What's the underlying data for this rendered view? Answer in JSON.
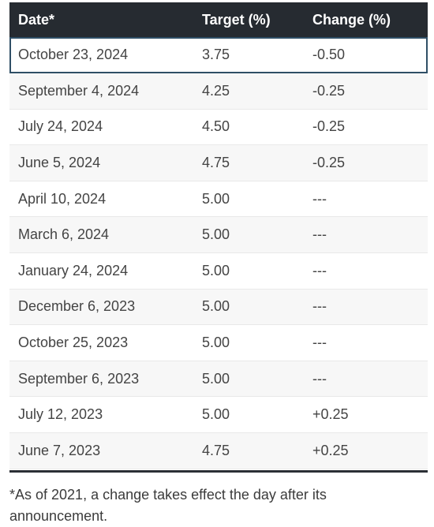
{
  "table": {
    "headers": {
      "date": "Date*",
      "target": "Target (%)",
      "change": "Change (%)"
    },
    "rows": [
      {
        "date": "October 23, 2024",
        "target": "3.75",
        "change": "-0.50"
      },
      {
        "date": "September 4, 2024",
        "target": "4.25",
        "change": "-0.25"
      },
      {
        "date": "July 24, 2024",
        "target": "4.50",
        "change": "-0.25"
      },
      {
        "date": "June 5, 2024",
        "target": "4.75",
        "change": "-0.25"
      },
      {
        "date": "April 10, 2024",
        "target": "5.00",
        "change": "---"
      },
      {
        "date": "March 6, 2024",
        "target": "5.00",
        "change": "---"
      },
      {
        "date": "January 24, 2024",
        "target": "5.00",
        "change": "---"
      },
      {
        "date": "December 6, 2023",
        "target": "5.00",
        "change": "---"
      },
      {
        "date": "October 25, 2023",
        "target": "5.00",
        "change": "---"
      },
      {
        "date": "September 6, 2023",
        "target": "5.00",
        "change": "---"
      },
      {
        "date": "July 12, 2023",
        "target": "5.00",
        "change": "+0.25"
      },
      {
        "date": "June 7, 2023",
        "target": "4.75",
        "change": "+0.25"
      }
    ]
  },
  "footnote": "*As of 2021, a change takes effect the day after its announcement.",
  "colors": {
    "header_bg": "#262b31",
    "header_text": "#ffffff",
    "row_alt_bg": "#f7f7f7",
    "highlight_border": "#2f4f66"
  }
}
